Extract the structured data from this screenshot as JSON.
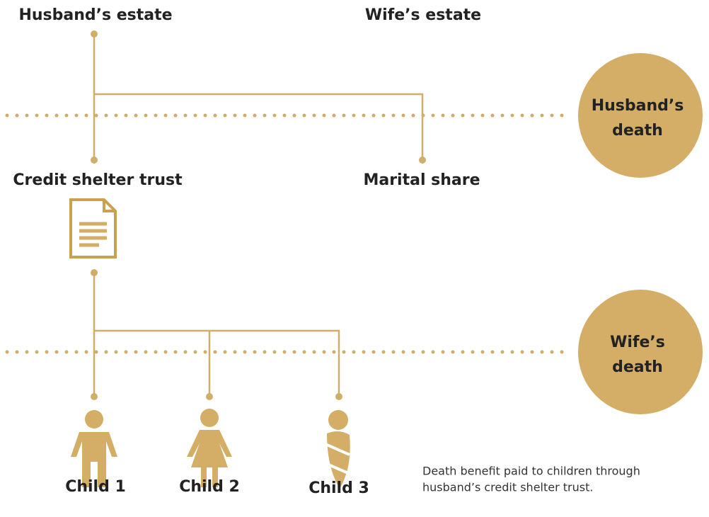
{
  "header": {
    "left_estate": "Husband’s estate",
    "right_estate": "Wife’s estate"
  },
  "first_split": {
    "left": "Credit shelter trust",
    "right": "Marital share"
  },
  "events": [
    {
      "lines": [
        "Husband’s",
        "death"
      ]
    },
    {
      "lines": [
        "Wife’s",
        "death"
      ]
    }
  ],
  "children": [
    {
      "label": "Child 1"
    },
    {
      "label": "Child 2"
    },
    {
      "label": "Child 3"
    }
  ],
  "note": {
    "lines": [
      "Death benefit paid to children through",
      "husband’s credit shelter trust."
    ]
  }
}
